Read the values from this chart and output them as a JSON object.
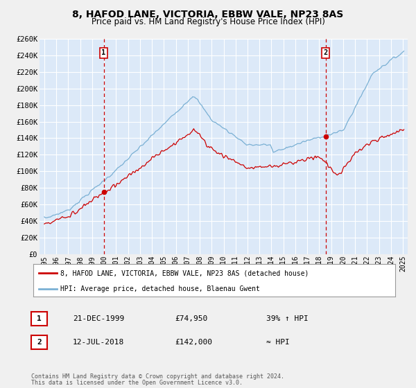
{
  "title": "8, HAFOD LANE, VICTORIA, EBBW VALE, NP23 8AS",
  "subtitle": "Price paid vs. HM Land Registry's House Price Index (HPI)",
  "legend_property": "8, HAFOD LANE, VICTORIA, EBBW VALE, NP23 8AS (detached house)",
  "legend_hpi": "HPI: Average price, detached house, Blaenau Gwent",
  "annotation1_label": "1",
  "annotation1_date": "21-DEC-1999",
  "annotation1_price": "£74,950",
  "annotation1_hpi": "39% ↑ HPI",
  "annotation2_label": "2",
  "annotation2_date": "12-JUL-2018",
  "annotation2_price": "£142,000",
  "annotation2_hpi": "≈ HPI",
  "footer1": "Contains HM Land Registry data © Crown copyright and database right 2024.",
  "footer2": "This data is licensed under the Open Government Licence v3.0.",
  "sale1_x": 1999.97,
  "sale1_y": 74950,
  "sale2_x": 2018.53,
  "sale2_y": 142000,
  "vline1_x": 1999.97,
  "vline2_x": 2018.53,
  "ylim": [
    0,
    260000
  ],
  "xlim_start": 1994.6,
  "xlim_end": 2025.4,
  "bg_color": "#dce9f8",
  "fig_bg_color": "#f0f0f0",
  "grid_color": "#ffffff",
  "property_line_color": "#cc0000",
  "hpi_line_color": "#7ab0d4",
  "vline_color": "#cc0000",
  "sale_marker_color": "#cc0000",
  "title_fontsize": 10,
  "subtitle_fontsize": 8.5
}
